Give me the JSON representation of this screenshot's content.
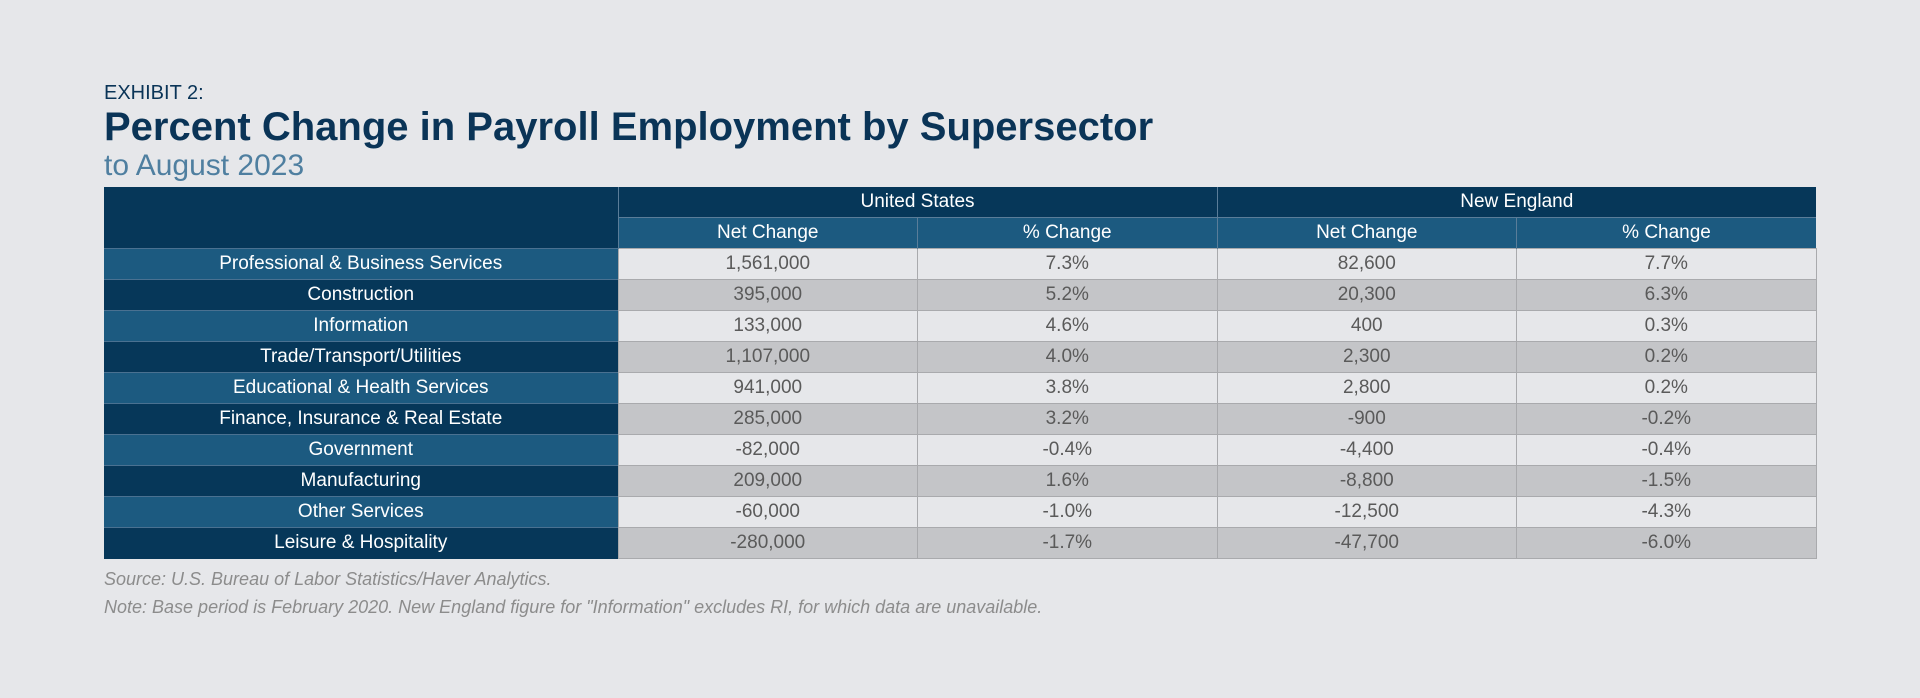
{
  "header": {
    "exhibit_label": "EXHIBIT 2:",
    "title": "Percent Change in Payroll Employment by Supersector",
    "subtitle": "to August 2023"
  },
  "chart_data": {
    "type": "table",
    "title": "Percent Change in Payroll Employment by Supersector",
    "subtitle": "to August 2023",
    "column_groups": [
      "United States",
      "New England"
    ],
    "columns": [
      "Net Change",
      "% Change",
      "Net Change",
      "% Change"
    ],
    "rows": [
      {
        "label": "Professional & Business Services",
        "us_net": "1,561,000",
        "us_pct": "7.3%",
        "ne_net": "82,600",
        "ne_pct": "7.7%"
      },
      {
        "label": "Construction",
        "us_net": "395,000",
        "us_pct": "5.2%",
        "ne_net": "20,300",
        "ne_pct": "6.3%"
      },
      {
        "label": "Information",
        "us_net": "133,000",
        "us_pct": "4.6%",
        "ne_net": "400",
        "ne_pct": "0.3%"
      },
      {
        "label": "Trade/Transport/Utilities",
        "us_net": "1,107,000",
        "us_pct": "4.0%",
        "ne_net": "2,300",
        "ne_pct": "0.2%"
      },
      {
        "label": "Educational & Health Services",
        "us_net": "941,000",
        "us_pct": "3.8%",
        "ne_net": "2,800",
        "ne_pct": "0.2%"
      },
      {
        "label": "Finance, Insurance & Real Estate",
        "us_net": "285,000",
        "us_pct": "3.2%",
        "ne_net": "-900",
        "ne_pct": "-0.2%"
      },
      {
        "label": "Government",
        "us_net": "-82,000",
        "us_pct": "-0.4%",
        "ne_net": "-4,400",
        "ne_pct": "-0.4%"
      },
      {
        "label": "Manufacturing",
        "us_net": "209,000",
        "us_pct": "1.6%",
        "ne_net": "-8,800",
        "ne_pct": "-1.5%"
      },
      {
        "label": "Other Services",
        "us_net": "-60,000",
        "us_pct": "-1.0%",
        "ne_net": "-12,500",
        "ne_pct": "-4.3%"
      },
      {
        "label": "Leisure & Hospitality",
        "us_net": "-280,000",
        "us_pct": "-1.7%",
        "ne_net": "-47,700",
        "ne_pct": "-6.0%"
      }
    ]
  },
  "footer": {
    "source": "Source: U.S. Bureau of Labor Statistics/Haver Analytics.",
    "note": "Note: Base period is February 2020. New England figure for \"Information\" excludes RI, for which data are unavailable."
  },
  "colors": {
    "background": "#e6e7ea",
    "header_dark": "#063759",
    "header_mid": "#1c5a80",
    "title": "#0a3457",
    "subtitle": "#4f7fa0",
    "row_light": "#e6e7ea",
    "row_dark": "#c4c5c8"
  }
}
